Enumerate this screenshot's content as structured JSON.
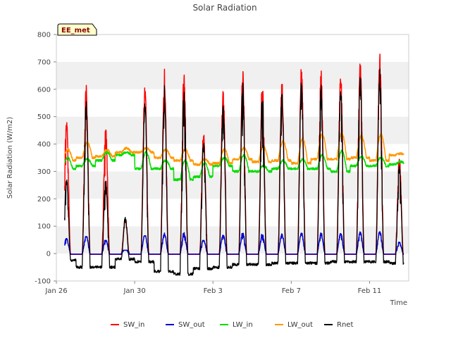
{
  "chart_data": {
    "type": "line",
    "title": "Solar Radiation",
    "xlabel": "Time",
    "ylabel": "Solar Radiation (W/m2)",
    "site_label": "EE_met",
    "xlim": [
      "2018-01-26",
      "2018-02-13"
    ],
    "ylim": [
      -100,
      800
    ],
    "yticks": [
      -100,
      0,
      100,
      200,
      300,
      400,
      500,
      600,
      700,
      800
    ],
    "xticks": [
      {
        "date": "2018-01-26",
        "label": "Jan 26"
      },
      {
        "date": "2018-01-30",
        "label": "Jan 30"
      },
      {
        "date": "2018-02-03",
        "label": "Feb 3"
      },
      {
        "date": "2018-02-07",
        "label": "Feb 7"
      },
      {
        "date": "2018-02-11",
        "label": "Feb 11"
      }
    ],
    "grid": "horizontal bands",
    "legend_position": "bottom",
    "data_range": [
      "2018-01-26 10:00",
      "2018-02-12 18:00"
    ],
    "days": [
      "2018-01-26",
      "2018-01-27",
      "2018-01-28",
      "2018-01-29",
      "2018-01-30",
      "2018-01-31",
      "2018-02-01",
      "2018-02-02",
      "2018-02-03",
      "2018-02-04",
      "2018-02-05",
      "2018-02-06",
      "2018-02-07",
      "2018-02-08",
      "2018-02-09",
      "2018-02-10",
      "2018-02-11",
      "2018-02-12"
    ],
    "series": [
      {
        "name": "SW_in",
        "color": "#ff0000",
        "daily_peak": [
          505,
          620,
          460,
          130,
          635,
          675,
          680,
          455,
          630,
          678,
          638,
          638,
          690,
          672,
          678,
          725,
          740,
          360
        ]
      },
      {
        "name": "SW_out",
        "color": "#0000cc",
        "daily_peak": [
          55,
          62,
          48,
          12,
          65,
          75,
          78,
          48,
          72,
          74,
          70,
          72,
          74,
          75,
          76,
          80,
          80,
          45
        ]
      },
      {
        "name": "LW_in",
        "color": "#00dd00",
        "daily_range": [
          [
            310,
            350
          ],
          [
            320,
            345
          ],
          [
            340,
            370
          ],
          [
            360,
            370
          ],
          [
            310,
            370
          ],
          [
            310,
            340
          ],
          [
            270,
            340
          ],
          [
            280,
            330
          ],
          [
            320,
            350
          ],
          [
            300,
            360
          ],
          [
            300,
            320
          ],
          [
            310,
            340
          ],
          [
            310,
            345
          ],
          [
            310,
            360
          ],
          [
            300,
            375
          ],
          [
            320,
            355
          ],
          [
            320,
            350
          ],
          [
            325,
            335
          ]
        ]
      },
      {
        "name": "LW_out",
        "color": "#ff9900",
        "daily_range": [
          [
            340,
            380
          ],
          [
            350,
            405
          ],
          [
            355,
            380
          ],
          [
            370,
            385
          ],
          [
            370,
            385
          ],
          [
            350,
            380
          ],
          [
            340,
            380
          ],
          [
            325,
            345
          ],
          [
            330,
            380
          ],
          [
            345,
            385
          ],
          [
            335,
            390
          ],
          [
            340,
            410
          ],
          [
            330,
            420
          ],
          [
            345,
            435
          ],
          [
            345,
            440
          ],
          [
            350,
            430
          ],
          [
            340,
            435
          ],
          [
            360,
            365
          ]
        ]
      },
      {
        "name": "Rnet",
        "color": "#000000",
        "daily_peak": [
          300,
          575,
          285,
          150,
          590,
          630,
          630,
          440,
          590,
          650,
          615,
          615,
          655,
          635,
          645,
          690,
          700,
          350
        ],
        "night_value": [
          -25,
          -50,
          -50,
          -20,
          -30,
          -65,
          -75,
          -55,
          -50,
          -40,
          -40,
          -35,
          -35,
          -35,
          -30,
          -30,
          -30,
          -35
        ]
      }
    ]
  }
}
